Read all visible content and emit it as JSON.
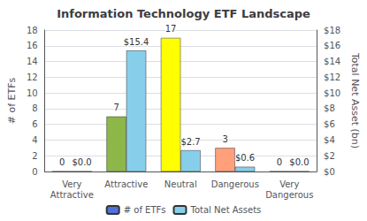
{
  "chart_data": {
    "type": "bar",
    "title": "Information Technology ETF Landscape",
    "categories": [
      "Very\nAttractive",
      "Attractive",
      "Neutral",
      "Dangerous",
      "Very\nDangerous"
    ],
    "series": [
      {
        "name": "# of ETFs",
        "values": [
          0,
          7,
          17,
          3,
          0
        ],
        "colors": [
          "#8db748",
          "#8db748",
          "#ffff00",
          "#ffa07a",
          "#8db748"
        ]
      },
      {
        "name": "Total Net Assets",
        "axis": "y2",
        "color": "#87ceeb",
        "values": [
          0.0,
          15.4,
          2.7,
          0.6,
          0.0
        ],
        "value_labels": [
          "$0.0",
          "$15.4",
          "$2.7",
          "$0.6",
          "$0.0"
        ]
      }
    ],
    "ylabel": "# of ETFs",
    "y2label": "Total Net Asset (bn)",
    "ylim": [
      0,
      18
    ],
    "yticks": [
      0,
      2,
      4,
      6,
      8,
      10,
      12,
      14,
      16,
      18
    ],
    "y2lim": [
      0,
      18
    ],
    "y2ticks": [
      {
        "value": 0,
        "label": "$0"
      },
      {
        "value": 2,
        "label": "$2"
      },
      {
        "value": 4,
        "label": "$4"
      },
      {
        "value": 6,
        "label": "$6"
      },
      {
        "value": 8,
        "label": "$8"
      },
      {
        "value": 10,
        "label": "$10"
      },
      {
        "value": 12,
        "label": "$12"
      },
      {
        "value": 14,
        "label": "$14"
      },
      {
        "value": 16,
        "label": "$16"
      },
      {
        "value": 18,
        "label": "$18"
      }
    ],
    "grid": true,
    "data_labels": true,
    "legend": "bottom"
  }
}
